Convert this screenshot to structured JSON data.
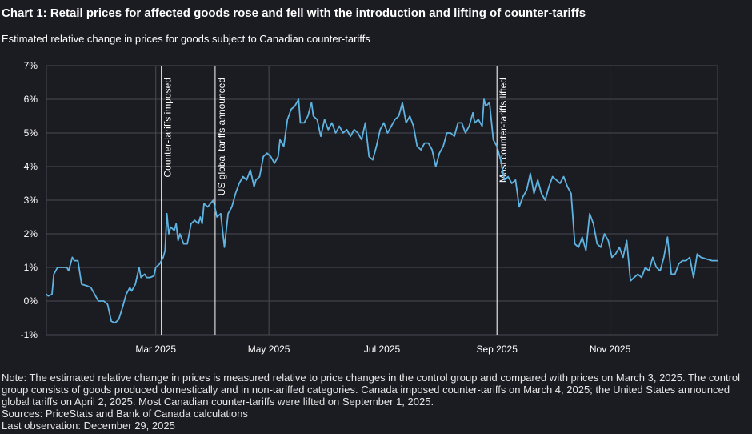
{
  "title": "Chart 1: Retail prices for affected goods rose and fell with the introduction and lifting of counter-tariffs",
  "subtitle": "Estimated relative change in prices for goods subject to Canadian counter-tariffs",
  "footer": {
    "note": "Note: The estimated relative change in prices is measured relative to price changes in the control group and compared with prices on March 3, 2025. The control group consists of goods produced domestically and in non-tariffed categories. Canada imposed counter-tariffs on March 4, 2025; the United States announced global tariffs on April 2, 2025. Most Canadian counter-tariffs were lifted on September 1, 2025.",
    "sources": "Sources: PriceStats and Bank of Canada calculations",
    "last_observation": "Last observation: December 29, 2025"
  },
  "colors": {
    "background": "#1b1b22",
    "series": "#5fb3e0",
    "grid": "#4a4a52",
    "event_line": "#ffffff",
    "text": "#ffffff"
  },
  "chart_data": {
    "type": "line",
    "x_type": "date",
    "xlim": [
      "2025-01-01",
      "2025-12-29"
    ],
    "ylim": [
      -1,
      7
    ],
    "y_ticks": [
      {
        "value": -1,
        "label": "-1%"
      },
      {
        "value": 0,
        "label": "0%"
      },
      {
        "value": 1,
        "label": "1%"
      },
      {
        "value": 2,
        "label": "2%"
      },
      {
        "value": 3,
        "label": "3%"
      },
      {
        "value": 4,
        "label": "4%"
      },
      {
        "value": 5,
        "label": "5%"
      },
      {
        "value": 6,
        "label": "6%"
      },
      {
        "value": 7,
        "label": "7%"
      }
    ],
    "x_ticks": [
      {
        "date": "2025-03-01",
        "label": "Mar 2025"
      },
      {
        "date": "2025-05-01",
        "label": "May 2025"
      },
      {
        "date": "2025-07-01",
        "label": "Jul 2025"
      },
      {
        "date": "2025-09-01",
        "label": "Sep 2025"
      },
      {
        "date": "2025-11-01",
        "label": "Nov 2025"
      }
    ],
    "grid": true,
    "events": [
      {
        "date": "2025-03-04",
        "label": "Counter-tariffs imposed"
      },
      {
        "date": "2025-04-02",
        "label": "US global tariffs announced"
      },
      {
        "date": "2025-09-01",
        "label": "Most counter-tariffs lifted"
      }
    ],
    "series": [
      {
        "points": [
          [
            "2025-01-01",
            0.2
          ],
          [
            "2025-01-02",
            0.15
          ],
          [
            "2025-01-04",
            0.2
          ],
          [
            "2025-01-05",
            0.8
          ],
          [
            "2025-01-07",
            1.0
          ],
          [
            "2025-01-10",
            1.0
          ],
          [
            "2025-01-12",
            1.0
          ],
          [
            "2025-01-13",
            0.9
          ],
          [
            "2025-01-15",
            1.3
          ],
          [
            "2025-01-16",
            1.2
          ],
          [
            "2025-01-18",
            1.2
          ],
          [
            "2025-01-20",
            0.5
          ],
          [
            "2025-01-23",
            0.45
          ],
          [
            "2025-01-25",
            0.4
          ],
          [
            "2025-01-27",
            0.2
          ],
          [
            "2025-01-29",
            0.0
          ],
          [
            "2025-02-01",
            0.0
          ],
          [
            "2025-02-03",
            -0.1
          ],
          [
            "2025-02-05",
            -0.6
          ],
          [
            "2025-02-07",
            -0.65
          ],
          [
            "2025-02-09",
            -0.55
          ],
          [
            "2025-02-11",
            -0.2
          ],
          [
            "2025-02-13",
            0.2
          ],
          [
            "2025-02-15",
            0.4
          ],
          [
            "2025-02-16",
            0.3
          ],
          [
            "2025-02-18",
            0.5
          ],
          [
            "2025-02-20",
            1.0
          ],
          [
            "2025-02-21",
            0.7
          ],
          [
            "2025-02-23",
            0.8
          ],
          [
            "2025-02-24",
            0.7
          ],
          [
            "2025-02-26",
            0.7
          ],
          [
            "2025-02-28",
            0.75
          ],
          [
            "2025-03-01",
            1.0
          ],
          [
            "2025-03-03",
            1.1
          ],
          [
            "2025-03-05",
            1.3
          ],
          [
            "2025-03-06",
            1.5
          ],
          [
            "2025-03-07",
            2.6
          ],
          [
            "2025-03-08",
            2.0
          ],
          [
            "2025-03-09",
            2.2
          ],
          [
            "2025-03-11",
            2.1
          ],
          [
            "2025-03-12",
            2.3
          ],
          [
            "2025-03-13",
            1.8
          ],
          [
            "2025-03-14",
            2.0
          ],
          [
            "2025-03-16",
            1.7
          ],
          [
            "2025-03-18",
            1.7
          ],
          [
            "2025-03-20",
            2.3
          ],
          [
            "2025-03-22",
            2.4
          ],
          [
            "2025-03-24",
            2.3
          ],
          [
            "2025-03-25",
            2.5
          ],
          [
            "2025-03-26",
            2.3
          ],
          [
            "2025-03-27",
            2.9
          ],
          [
            "2025-03-29",
            2.8
          ],
          [
            "2025-04-01",
            3.0
          ],
          [
            "2025-04-03",
            2.5
          ],
          [
            "2025-04-05",
            2.6
          ],
          [
            "2025-04-07",
            1.6
          ],
          [
            "2025-04-09",
            2.6
          ],
          [
            "2025-04-11",
            2.8
          ],
          [
            "2025-04-13",
            3.2
          ],
          [
            "2025-04-15",
            3.5
          ],
          [
            "2025-04-17",
            3.7
          ],
          [
            "2025-04-19",
            3.6
          ],
          [
            "2025-04-21",
            3.9
          ],
          [
            "2025-04-23",
            3.4
          ],
          [
            "2025-04-24",
            3.6
          ],
          [
            "2025-04-26",
            3.7
          ],
          [
            "2025-04-28",
            4.3
          ],
          [
            "2025-04-30",
            4.4
          ],
          [
            "2025-05-02",
            4.3
          ],
          [
            "2025-05-04",
            4.1
          ],
          [
            "2025-05-06",
            4.3
          ],
          [
            "2025-05-07",
            4.8
          ],
          [
            "2025-05-09",
            4.6
          ],
          [
            "2025-05-11",
            5.4
          ],
          [
            "2025-05-13",
            5.7
          ],
          [
            "2025-05-15",
            5.8
          ],
          [
            "2025-05-17",
            6.0
          ],
          [
            "2025-05-18",
            5.3
          ],
          [
            "2025-05-20",
            5.3
          ],
          [
            "2025-05-22",
            5.5
          ],
          [
            "2025-05-24",
            5.9
          ],
          [
            "2025-05-25",
            5.5
          ],
          [
            "2025-05-27",
            5.4
          ],
          [
            "2025-05-29",
            4.9
          ],
          [
            "2025-05-31",
            5.4
          ],
          [
            "2025-06-02",
            5.1
          ],
          [
            "2025-06-04",
            5.3
          ],
          [
            "2025-06-06",
            5.0
          ],
          [
            "2025-06-08",
            5.2
          ],
          [
            "2025-06-10",
            5.0
          ],
          [
            "2025-06-12",
            5.1
          ],
          [
            "2025-06-14",
            4.9
          ],
          [
            "2025-06-16",
            5.1
          ],
          [
            "2025-06-18",
            5.0
          ],
          [
            "2025-06-20",
            4.8
          ],
          [
            "2025-06-22",
            5.3
          ],
          [
            "2025-06-24",
            4.3
          ],
          [
            "2025-06-26",
            4.2
          ],
          [
            "2025-06-28",
            4.6
          ],
          [
            "2025-06-30",
            5.1
          ],
          [
            "2025-07-02",
            5.3
          ],
          [
            "2025-07-04",
            5.0
          ],
          [
            "2025-07-06",
            5.2
          ],
          [
            "2025-07-08",
            5.4
          ],
          [
            "2025-07-10",
            5.5
          ],
          [
            "2025-07-12",
            5.9
          ],
          [
            "2025-07-14",
            5.3
          ],
          [
            "2025-07-16",
            5.5
          ],
          [
            "2025-07-18",
            5.2
          ],
          [
            "2025-07-20",
            4.6
          ],
          [
            "2025-07-22",
            4.5
          ],
          [
            "2025-07-24",
            4.7
          ],
          [
            "2025-07-26",
            4.7
          ],
          [
            "2025-07-28",
            4.5
          ],
          [
            "2025-07-30",
            4.0
          ],
          [
            "2025-08-01",
            4.4
          ],
          [
            "2025-08-03",
            4.6
          ],
          [
            "2025-08-05",
            5.0
          ],
          [
            "2025-08-07",
            5.0
          ],
          [
            "2025-08-09",
            4.9
          ],
          [
            "2025-08-11",
            5.3
          ],
          [
            "2025-08-13",
            5.3
          ],
          [
            "2025-08-15",
            5.0
          ],
          [
            "2025-08-17",
            5.2
          ],
          [
            "2025-08-19",
            5.6
          ],
          [
            "2025-08-20",
            5.3
          ],
          [
            "2025-08-22",
            5.4
          ],
          [
            "2025-08-24",
            5.2
          ],
          [
            "2025-08-25",
            6.0
          ],
          [
            "2025-08-26",
            5.8
          ],
          [
            "2025-08-28",
            5.9
          ],
          [
            "2025-08-30",
            4.8
          ],
          [
            "2025-09-01",
            4.6
          ],
          [
            "2025-09-03",
            4.2
          ],
          [
            "2025-09-05",
            3.6
          ],
          [
            "2025-09-07",
            3.7
          ],
          [
            "2025-09-09",
            3.5
          ],
          [
            "2025-09-11",
            3.6
          ],
          [
            "2025-09-13",
            2.8
          ],
          [
            "2025-09-15",
            3.1
          ],
          [
            "2025-09-17",
            3.3
          ],
          [
            "2025-09-19",
            3.8
          ],
          [
            "2025-09-21",
            3.2
          ],
          [
            "2025-09-23",
            3.6
          ],
          [
            "2025-09-25",
            3.2
          ],
          [
            "2025-09-27",
            3.0
          ],
          [
            "2025-09-29",
            3.4
          ],
          [
            "2025-10-01",
            3.7
          ],
          [
            "2025-10-03",
            3.6
          ],
          [
            "2025-10-05",
            3.5
          ],
          [
            "2025-10-07",
            3.7
          ],
          [
            "2025-10-09",
            3.4
          ],
          [
            "2025-10-11",
            3.2
          ],
          [
            "2025-10-13",
            1.7
          ],
          [
            "2025-10-15",
            1.6
          ],
          [
            "2025-10-17",
            1.9
          ],
          [
            "2025-10-19",
            1.5
          ],
          [
            "2025-10-21",
            2.6
          ],
          [
            "2025-10-23",
            2.3
          ],
          [
            "2025-10-25",
            1.7
          ],
          [
            "2025-10-27",
            1.6
          ],
          [
            "2025-10-29",
            2.0
          ],
          [
            "2025-10-31",
            1.8
          ],
          [
            "2025-11-02",
            1.3
          ],
          [
            "2025-11-04",
            1.4
          ],
          [
            "2025-11-06",
            1.6
          ],
          [
            "2025-11-08",
            1.3
          ],
          [
            "2025-11-10",
            1.8
          ],
          [
            "2025-11-12",
            0.6
          ],
          [
            "2025-11-14",
            0.7
          ],
          [
            "2025-11-16",
            0.8
          ],
          [
            "2025-11-18",
            0.7
          ],
          [
            "2025-11-20",
            1.0
          ],
          [
            "2025-11-22",
            0.9
          ],
          [
            "2025-11-24",
            1.3
          ],
          [
            "2025-11-26",
            1.0
          ],
          [
            "2025-11-28",
            0.9
          ],
          [
            "2025-11-30",
            1.3
          ],
          [
            "2025-12-02",
            1.9
          ],
          [
            "2025-12-04",
            0.8
          ],
          [
            "2025-12-06",
            0.8
          ],
          [
            "2025-12-08",
            1.1
          ],
          [
            "2025-12-10",
            1.2
          ],
          [
            "2025-12-12",
            1.2
          ],
          [
            "2025-12-14",
            1.3
          ],
          [
            "2025-12-16",
            0.7
          ],
          [
            "2025-12-18",
            1.4
          ],
          [
            "2025-12-20",
            1.3
          ],
          [
            "2025-12-23",
            1.25
          ],
          [
            "2025-12-26",
            1.2
          ],
          [
            "2025-12-29",
            1.2
          ]
        ]
      }
    ]
  }
}
